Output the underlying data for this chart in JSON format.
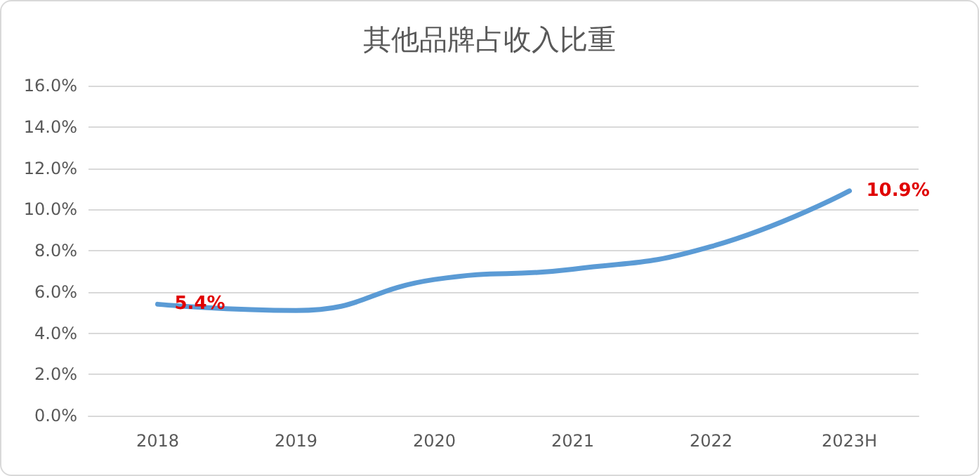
{
  "chart_data": {
    "type": "line",
    "title": "其他品牌占收入比重",
    "categories": [
      "2018",
      "2019",
      "2020",
      "2021",
      "2022",
      "2023H"
    ],
    "series": [
      {
        "color": "#5b9bd5",
        "values": [
          5.4,
          5.1,
          6.6,
          7.1,
          8.2,
          10.9
        ],
        "value_labels": [
          "5.4%",
          null,
          null,
          null,
          null,
          "10.9%"
        ]
      }
    ],
    "ylim": [
      0,
      16
    ],
    "yticks": [
      {
        "value": 0,
        "label": "0.0%"
      },
      {
        "value": 2,
        "label": "2.0%"
      },
      {
        "value": 4,
        "label": "4.0%"
      },
      {
        "value": 6,
        "label": "6.0%"
      },
      {
        "value": 8,
        "label": "8.0%"
      },
      {
        "value": 10,
        "label": "10.0%"
      },
      {
        "value": 12,
        "label": "12.0%"
      },
      {
        "value": 14,
        "label": "14.0%"
      },
      {
        "value": 16,
        "label": "16.0%"
      }
    ],
    "grid": "y",
    "marker": "none",
    "line_style": "solid"
  }
}
